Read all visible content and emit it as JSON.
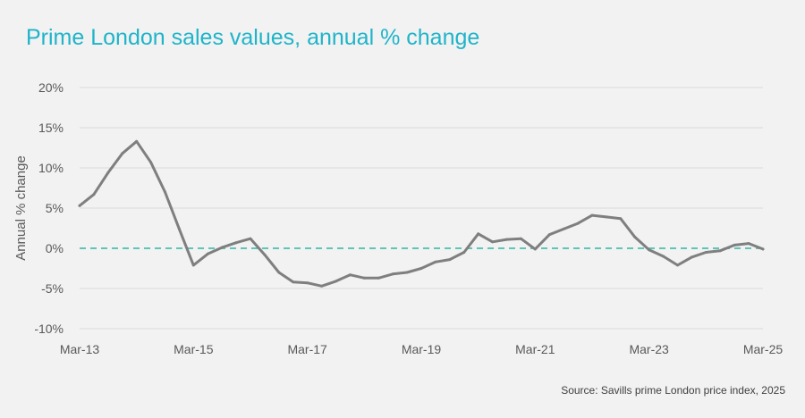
{
  "title": "Prime London sales values, annual % change",
  "source": "Source: Savills prime London price index, 2025",
  "colors": {
    "background": "#f2f2f2",
    "title": "#1fb4c9",
    "series_line": "#7f7f7f",
    "zero_line": "#5fc5b6",
    "gridline": "#d9d9d9"
  },
  "chart_data": {
    "type": "line",
    "title": "Prime London sales values, annual % change",
    "xlabel": "",
    "ylabel": "Annual % change",
    "ylim": [
      -10,
      20
    ],
    "yticks": [
      -10,
      -5,
      0,
      5,
      10,
      15,
      20
    ],
    "ytick_labels": [
      "-10%",
      "-5%",
      "0%",
      "5%",
      "10%",
      "15%",
      "20%"
    ],
    "xticks": [
      "Mar-13",
      "Mar-15",
      "Mar-17",
      "Mar-19",
      "Mar-21",
      "Mar-23",
      "Mar-25"
    ],
    "grid": true,
    "reference_line": {
      "y": 0,
      "style": "dashed"
    },
    "series": [
      {
        "x": [
          "Mar-13",
          "Jun-13",
          "Sep-13",
          "Dec-13",
          "Mar-14",
          "Jun-14",
          "Sep-14",
          "Dec-14",
          "Mar-15",
          "Jun-15",
          "Sep-15",
          "Dec-15",
          "Mar-16",
          "Jun-16",
          "Sep-16",
          "Dec-16",
          "Mar-17",
          "Jun-17",
          "Sep-17",
          "Dec-17",
          "Mar-18",
          "Jun-18",
          "Sep-18",
          "Dec-18",
          "Mar-19",
          "Jun-19",
          "Sep-19",
          "Dec-19",
          "Mar-20",
          "Jun-20",
          "Sep-20",
          "Dec-20",
          "Mar-21",
          "Jun-21",
          "Sep-21",
          "Dec-21",
          "Mar-22",
          "Jun-22",
          "Sep-22",
          "Dec-22",
          "Mar-23",
          "Jun-23",
          "Sep-23",
          "Dec-23",
          "Mar-24",
          "Jun-24",
          "Sep-24",
          "Dec-24",
          "Mar-25"
        ],
        "values": [
          5.3,
          6.7,
          9.4,
          11.8,
          13.3,
          10.7,
          7.0,
          2.4,
          -2.1,
          -0.7,
          0.1,
          0.7,
          1.2,
          -0.8,
          -3.0,
          -4.2,
          -4.3,
          -4.7,
          -4.1,
          -3.3,
          -3.7,
          -3.7,
          -3.2,
          -3.0,
          -2.5,
          -1.7,
          -1.4,
          -0.5,
          1.8,
          0.8,
          1.1,
          1.2,
          -0.1,
          1.7,
          2.4,
          3.1,
          4.1,
          3.9,
          3.7,
          1.4,
          -0.2,
          -1.0,
          -2.1,
          -1.1,
          -0.5,
          -0.3,
          0.4,
          0.6,
          -0.1
        ]
      }
    ]
  }
}
